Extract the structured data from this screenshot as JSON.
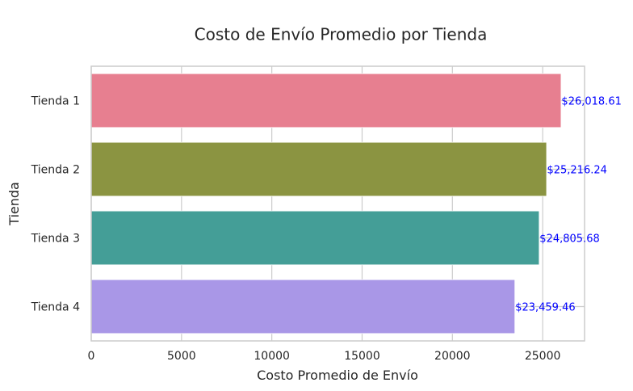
{
  "chart_data": {
    "type": "bar",
    "orientation": "horizontal",
    "title": "Costo de Envío Promedio por Tienda",
    "xlabel": "Costo Promedio de Envío",
    "ylabel": "Tienda",
    "categories": [
      "Tienda 1",
      "Tienda 2",
      "Tienda 3",
      "Tienda 4"
    ],
    "values": [
      26018.61,
      25216.24,
      24805.68,
      23459.46
    ],
    "value_labels": [
      "$26,018.61",
      "$25,216.24",
      "$24,805.68",
      "$23,459.46"
    ],
    "bar_colors": [
      "#e77f90",
      "#8b9441",
      "#449e97",
      "#a997e7"
    ],
    "label_color": "#0000ff",
    "xlim": [
      0,
      27318.54
    ],
    "xticks": [
      0,
      5000,
      10000,
      15000,
      20000,
      25000
    ],
    "xtick_labels": [
      "0",
      "5000",
      "10000",
      "15000",
      "20000",
      "25000"
    ],
    "grid": true,
    "style": "whitegrid"
  }
}
